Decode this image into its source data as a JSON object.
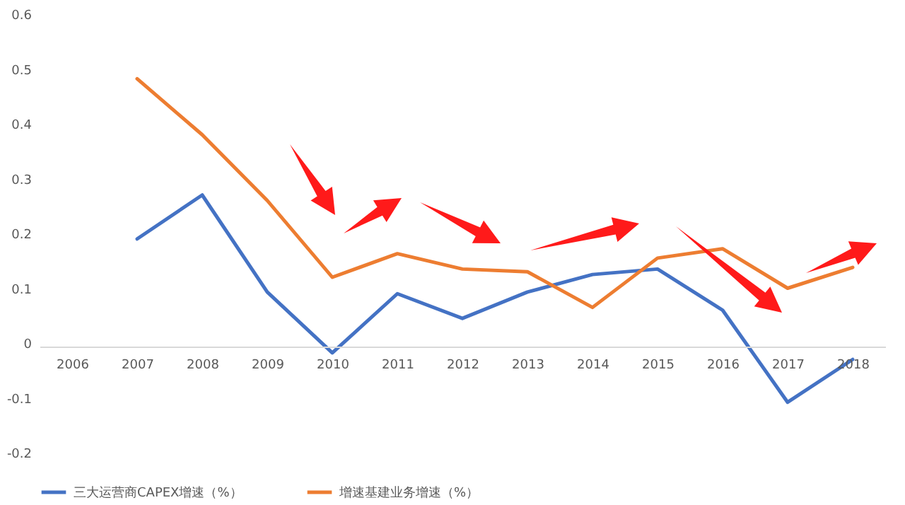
{
  "chart_data": {
    "type": "line",
    "categories": [
      "2006",
      "2007",
      "2008",
      "2009",
      "2010",
      "2011",
      "2012",
      "2013",
      "2014",
      "2015",
      "2016",
      "2017",
      "2018"
    ],
    "series": [
      {
        "name": "三大运营商CAPEX增速（%）",
        "color": "#4472c4",
        "values": [
          null,
          0.19,
          0.27,
          0.093,
          -0.018,
          0.09,
          0.045,
          0.093,
          0.125,
          0.135,
          0.06,
          -0.108,
          -0.03
        ]
      },
      {
        "name": "增速基建业务增速（%）",
        "color": "#ed7d31",
        "values": [
          null,
          0.482,
          0.38,
          0.26,
          0.12,
          0.163,
          0.135,
          0.13,
          0.065,
          0.155,
          0.172,
          0.1,
          0.138
        ]
      }
    ],
    "ylim": [
      -0.2,
      0.6
    ],
    "yticks": [
      -0.2,
      -0.1,
      0,
      0.1,
      0.2,
      0.3,
      0.4,
      0.5,
      0.6
    ],
    "grid": false,
    "legend": "bottom",
    "marker": "none",
    "line_style": "solid"
  }
}
